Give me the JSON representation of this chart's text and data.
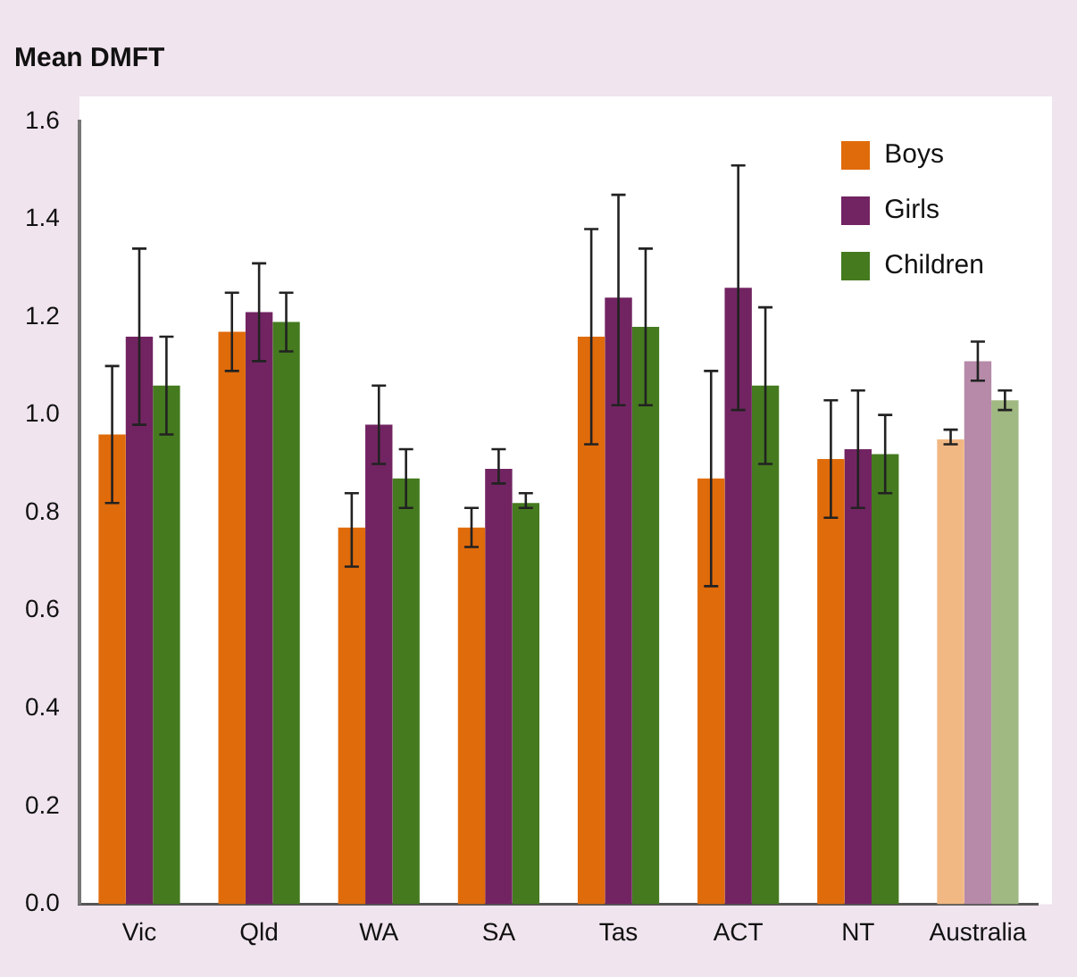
{
  "chart_data": {
    "type": "bar",
    "title": "Mean DMFT",
    "categories": [
      "Vic",
      "Qld",
      "WA",
      "SA",
      "Tas",
      "ACT",
      "NT",
      "Australia"
    ],
    "series": [
      {
        "name": "Boys",
        "color": "#e06b0a",
        "colors": [
          "#e06b0a",
          "#e06b0a",
          "#e06b0a",
          "#e06b0a",
          "#e06b0a",
          "#e06b0a",
          "#e06b0a",
          "#f2b884"
        ],
        "values": [
          0.96,
          1.17,
          0.77,
          0.77,
          1.16,
          0.87,
          0.91,
          0.95
        ],
        "errors": [
          [
            0.82,
            1.1
          ],
          [
            1.09,
            1.25
          ],
          [
            0.69,
            0.84
          ],
          [
            0.73,
            0.81
          ],
          [
            0.94,
            1.38
          ],
          [
            0.65,
            1.09
          ],
          [
            0.79,
            1.03
          ],
          [
            0.94,
            0.97
          ]
        ]
      },
      {
        "name": "Girls",
        "color": "#722462",
        "colors": [
          "#722462",
          "#722462",
          "#722462",
          "#722462",
          "#722462",
          "#722462",
          "#722462",
          "#b68aa8"
        ],
        "values": [
          1.16,
          1.21,
          0.98,
          0.89,
          1.24,
          1.26,
          0.93,
          1.11
        ],
        "errors": [
          [
            0.98,
            1.34
          ],
          [
            1.11,
            1.31
          ],
          [
            0.9,
            1.06
          ],
          [
            0.86,
            0.93
          ],
          [
            1.02,
            1.45
          ],
          [
            1.01,
            1.51
          ],
          [
            0.81,
            1.05
          ],
          [
            1.07,
            1.15
          ]
        ]
      },
      {
        "name": "Children",
        "color": "#457a1f",
        "colors": [
          "#457a1f",
          "#457a1f",
          "#457a1f",
          "#457a1f",
          "#457a1f",
          "#457a1f",
          "#457a1f",
          "#a0b881"
        ],
        "values": [
          1.06,
          1.19,
          0.87,
          0.82,
          1.18,
          1.06,
          0.92,
          1.03
        ],
        "errors": [
          [
            0.96,
            1.16
          ],
          [
            1.13,
            1.25
          ],
          [
            0.81,
            0.93
          ],
          [
            0.81,
            0.84
          ],
          [
            1.02,
            1.34
          ],
          [
            0.9,
            1.22
          ],
          [
            0.84,
            1.0
          ],
          [
            1.01,
            1.05
          ]
        ]
      }
    ],
    "ylim": [
      0,
      1.6
    ],
    "yticks": [
      {
        "value": 0,
        "label": "0.0"
      },
      {
        "value": 0.2,
        "label": "0.2"
      },
      {
        "value": 0.4,
        "label": "0.4"
      },
      {
        "value": 0.6,
        "label": "0.6"
      },
      {
        "value": 0.8,
        "label": "0.8"
      },
      {
        "value": 1,
        "label": "1.0"
      },
      {
        "value": 1.2,
        "label": "1.2"
      },
      {
        "value": 1.4,
        "label": "1.4"
      },
      {
        "value": 1.6,
        "label": "1.6"
      }
    ],
    "grid": false,
    "legend": "top right"
  }
}
